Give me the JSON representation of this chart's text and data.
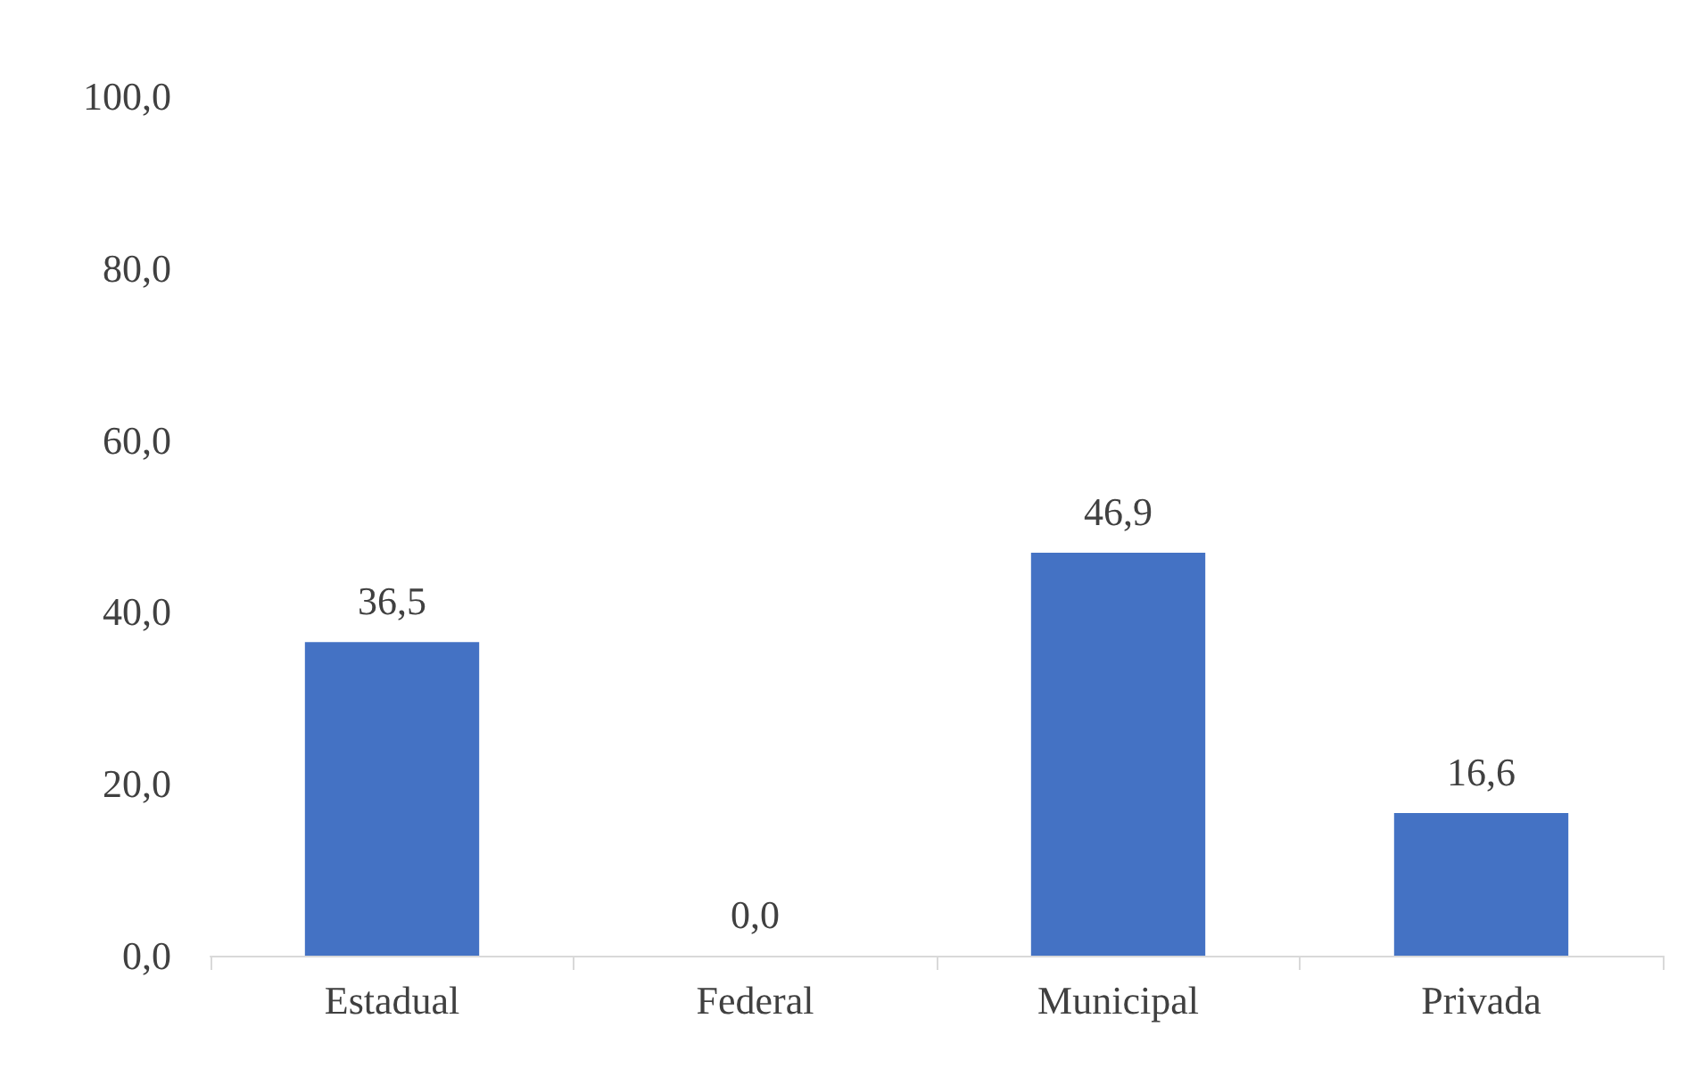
{
  "chart_data": {
    "type": "bar",
    "categories": [
      "Estadual",
      "Federal",
      "Municipal",
      "Privada"
    ],
    "values": [
      36.5,
      0.0,
      46.9,
      16.6
    ],
    "color": "#4472c4",
    "value_labels": [
      "36,5",
      "0,0",
      "46,9",
      "16,6"
    ],
    "ylim": [
      0,
      100
    ],
    "yticks": [
      {
        "value": 0,
        "label": "0,0"
      },
      {
        "value": 20,
        "label": "20,0"
      },
      {
        "value": 40,
        "label": "40,0"
      },
      {
        "value": 60,
        "label": "60,0"
      },
      {
        "value": 80,
        "label": "80,0"
      },
      {
        "value": 100,
        "label": "100,0"
      }
    ],
    "grid": false
  }
}
